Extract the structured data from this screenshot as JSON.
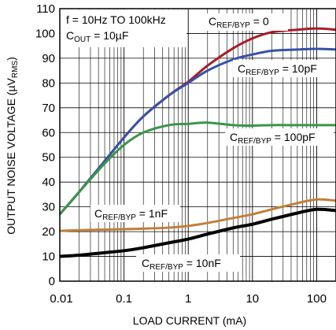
{
  "chart_data": {
    "type": "line",
    "xlabel": "LOAD CURRENT (mA)",
    "ylabel_main": "OUTPUT NOISE VOLTAGE (µV",
    "ylabel_sub": "RMS",
    "ylabel_close": ")",
    "x_scale": "log",
    "xlim": [
      0.01,
      200
    ],
    "ylim": [
      0,
      110
    ],
    "x_ticks": [
      0.01,
      0.1,
      1,
      10,
      100
    ],
    "x_tick_labels": [
      "0.01",
      "0.1",
      "1",
      "10",
      "100"
    ],
    "y_ticks": [
      0,
      10,
      20,
      30,
      40,
      50,
      60,
      70,
      80,
      90,
      100,
      110
    ],
    "y_tick_labels": [
      "0",
      "10",
      "20",
      "30",
      "40",
      "50",
      "60",
      "70",
      "80",
      "90",
      "100",
      "110"
    ],
    "grid": true,
    "annotation": {
      "line1": "f = 10Hz TO 100kHz",
      "line2_main": "C",
      "line2_sub": "OUT",
      "line2_rest": " = 10µF"
    },
    "series": [
      {
        "name": "CREF/BYP = 0",
        "label_main": "C",
        "label_sub": "REF/BYP",
        "label_rest": " = 0",
        "color": "#a61e2a",
        "points": [
          [
            0.01,
            27
          ],
          [
            0.02,
            36
          ],
          [
            0.05,
            48.5
          ],
          [
            0.1,
            58
          ],
          [
            0.2,
            66.5
          ],
          [
            0.5,
            75
          ],
          [
            1,
            80.5
          ],
          [
            2,
            87
          ],
          [
            5,
            94
          ],
          [
            10,
            98
          ],
          [
            20,
            100.5
          ],
          [
            50,
            101.5
          ],
          [
            100,
            102
          ],
          [
            200,
            101.5
          ]
        ]
      },
      {
        "name": "CREF/BYP = 10pF",
        "label_main": "C",
        "label_sub": "REF/BYP",
        "label_rest": " = 10pF",
        "color": "#3552a8",
        "points": [
          [
            0.01,
            27
          ],
          [
            0.02,
            36
          ],
          [
            0.05,
            48.5
          ],
          [
            0.1,
            58
          ],
          [
            0.2,
            66.5
          ],
          [
            0.5,
            75
          ],
          [
            1,
            80
          ],
          [
            2,
            85
          ],
          [
            5,
            89.5
          ],
          [
            10,
            91.5
          ],
          [
            20,
            93
          ],
          [
            50,
            93.5
          ],
          [
            100,
            93.8
          ],
          [
            200,
            93.5
          ]
        ]
      },
      {
        "name": "CREF/BYP = 100pF",
        "label_main": "C",
        "label_sub": "REF/BYP",
        "label_rest": " = 100pF",
        "color": "#3a9549",
        "points": [
          [
            0.01,
            27
          ],
          [
            0.02,
            36
          ],
          [
            0.05,
            47.5
          ],
          [
            0.1,
            55
          ],
          [
            0.2,
            60
          ],
          [
            0.5,
            63
          ],
          [
            1,
            63.5
          ],
          [
            2,
            64
          ],
          [
            5,
            63
          ],
          [
            10,
            62.8
          ],
          [
            20,
            63
          ],
          [
            50,
            63
          ],
          [
            100,
            63
          ],
          [
            200,
            63
          ]
        ]
      },
      {
        "name": "CREF/BYP = 1nF",
        "label_main": "C",
        "label_sub": "REF/BYP",
        "label_rest": " = 1nF",
        "color": "#c17f38",
        "points": [
          [
            0.01,
            20.3
          ],
          [
            0.02,
            20.6
          ],
          [
            0.05,
            20.8
          ],
          [
            0.1,
            21
          ],
          [
            0.2,
            21.2
          ],
          [
            0.5,
            21.6
          ],
          [
            1,
            22.3
          ],
          [
            2,
            23.5
          ],
          [
            5,
            25.5
          ],
          [
            10,
            27
          ],
          [
            20,
            29
          ],
          [
            50,
            31.5
          ],
          [
            100,
            33
          ],
          [
            200,
            32.5
          ]
        ]
      },
      {
        "name": "CREF/BYP = 10nF",
        "label_main": "C",
        "label_sub": "REF/BYP",
        "label_rest": " = 10nF",
        "color": "#000000",
        "points": [
          [
            0.01,
            10
          ],
          [
            0.02,
            10.5
          ],
          [
            0.05,
            11.5
          ],
          [
            0.1,
            12.3
          ],
          [
            0.2,
            13.5
          ],
          [
            0.5,
            15.5
          ],
          [
            1,
            17
          ],
          [
            2,
            19
          ],
          [
            5,
            21.5
          ],
          [
            10,
            23
          ],
          [
            20,
            25
          ],
          [
            50,
            27.5
          ],
          [
            100,
            29
          ],
          [
            200,
            28.5
          ]
        ]
      }
    ]
  }
}
